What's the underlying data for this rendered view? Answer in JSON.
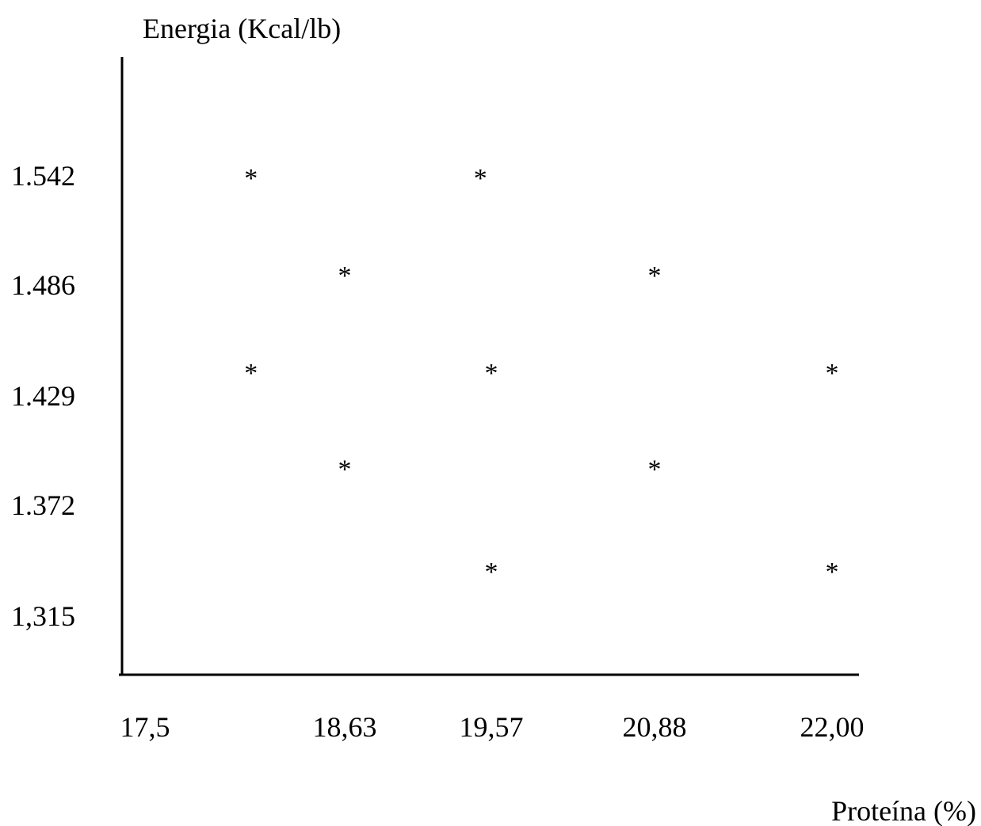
{
  "chart_data": {
    "type": "scatter",
    "ylabel": "Energia (Kcal/lb)",
    "xlabel": "Proteína (%)",
    "x_tick_labels": [
      "17,5",
      "18,63",
      "19,57",
      "20,88",
      "22,00"
    ],
    "y_tick_labels": [
      "1.542",
      "1.486",
      "1.429",
      "1.372",
      "1,315"
    ],
    "marker_symbol": "*",
    "grid": false,
    "points": [
      {
        "x": 18.1,
        "y": 1.542
      },
      {
        "x": 19.5,
        "y": 1.542
      },
      {
        "x": 18.63,
        "y": 1.492
      },
      {
        "x": 20.88,
        "y": 1.492
      },
      {
        "x": 18.1,
        "y": 1.442
      },
      {
        "x": 19.57,
        "y": 1.442
      },
      {
        "x": 22.0,
        "y": 1.442
      },
      {
        "x": 18.63,
        "y": 1.392
      },
      {
        "x": 20.88,
        "y": 1.392
      },
      {
        "x": 19.57,
        "y": 1.339
      },
      {
        "x": 22.0,
        "y": 1.339
      }
    ]
  }
}
